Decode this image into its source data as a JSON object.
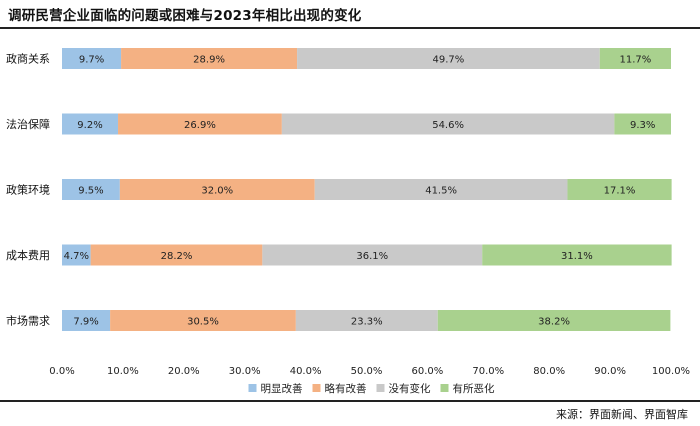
{
  "header": {
    "title": "调研民营企业面临的问题或困难与2023年相比出现的变化"
  },
  "footer": {
    "source": "来源：界面新闻、界面智库"
  },
  "chart_data": {
    "type": "bar",
    "orientation": "horizontal",
    "stacked": "percent",
    "title": "调研民营企业面临的问题或困难与2023年相比出现的变化",
    "categories": [
      "政商关系",
      "法治保障",
      "政策环境",
      "成本费用",
      "市场需求"
    ],
    "series": [
      {
        "name": "明显改善",
        "color": "#9dc3e6",
        "values": [
          9.7,
          9.2,
          9.5,
          4.7,
          7.9
        ]
      },
      {
        "name": "略有改善",
        "color": "#f4b183",
        "values": [
          28.9,
          26.9,
          32.0,
          28.2,
          30.5
        ]
      },
      {
        "name": "没有变化",
        "color": "#c9c9c9",
        "values": [
          49.7,
          54.6,
          41.5,
          36.1,
          23.3
        ]
      },
      {
        "name": "有所恶化",
        "color": "#a9d18e",
        "values": [
          11.7,
          9.3,
          17.1,
          31.1,
          38.2
        ]
      }
    ],
    "data_labels": true,
    "label_format": "{v}%",
    "xlim": [
      0,
      100
    ],
    "x_ticks": [
      "0.0%",
      "10.0%",
      "20.0%",
      "30.0%",
      "40.0%",
      "50.0%",
      "60.0%",
      "70.0%",
      "80.0%",
      "90.0%",
      "100.0%"
    ],
    "grid": false,
    "legend": {
      "position": "bottom"
    }
  }
}
